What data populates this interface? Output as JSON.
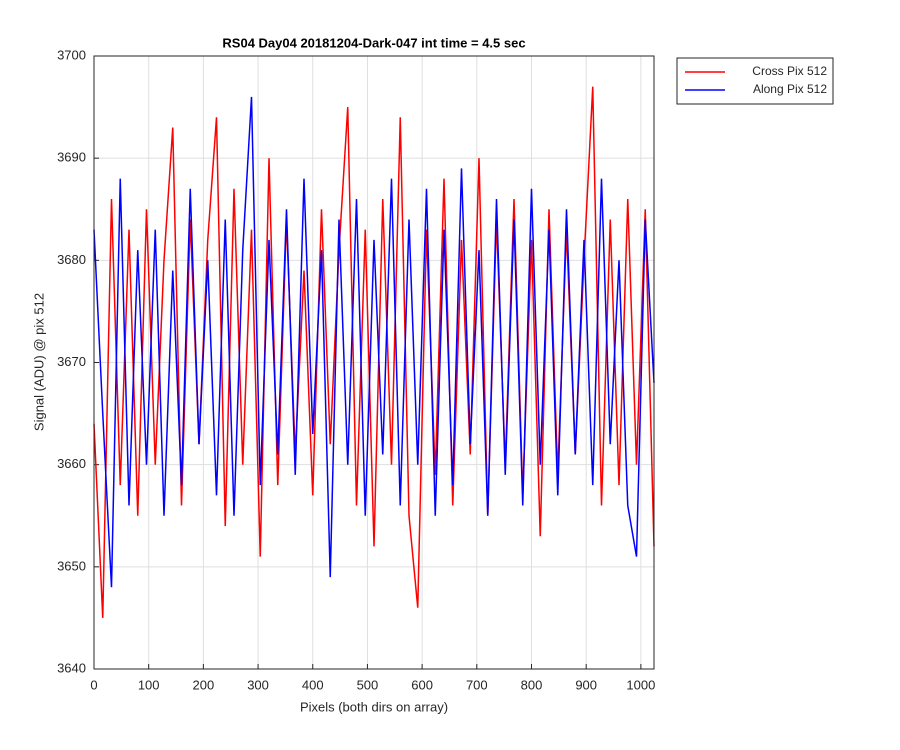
{
  "chart_data": {
    "type": "line",
    "title": "RS04 Day04 20181204-Dark-047 int time = 4.5 sec",
    "xlabel": "Pixels (both dirs on array)",
    "ylabel": "Signal (ADU) @ pix 512",
    "x": [
      0,
      16,
      32,
      48,
      64,
      80,
      96,
      112,
      128,
      144,
      160,
      176,
      192,
      208,
      224,
      240,
      256,
      272,
      288,
      304,
      320,
      336,
      352,
      368,
      384,
      400,
      416,
      432,
      448,
      464,
      480,
      496,
      512,
      528,
      544,
      560,
      576,
      592,
      608,
      624,
      640,
      656,
      672,
      688,
      704,
      720,
      736,
      752,
      768,
      784,
      800,
      816,
      832,
      848,
      864,
      880,
      896,
      912,
      928,
      944,
      960,
      976,
      992,
      1008,
      1024
    ],
    "series": [
      {
        "name": "Cross Pix 512",
        "color": "#ff0000",
        "values": [
          3664,
          3645,
          3686,
          3658,
          3683,
          3655,
          3685,
          3660,
          3680,
          3693,
          3656,
          3684,
          3662,
          3682,
          3694,
          3654,
          3687,
          3660,
          3683,
          3651,
          3690,
          3658,
          3684,
          3661,
          3679,
          3657,
          3685,
          3662,
          3681,
          3695,
          3656,
          3683,
          3652,
          3686,
          3660,
          3694,
          3655,
          3646,
          3683,
          3659,
          3688,
          3656,
          3682,
          3661,
          3690,
          3655,
          3684,
          3660,
          3686,
          3657,
          3682,
          3653,
          3685,
          3659,
          3683,
          3661,
          3680,
          3697,
          3656,
          3684,
          3658,
          3686,
          3660,
          3685,
          3652
        ]
      },
      {
        "name": "Along Pix 512",
        "color": "#0000ff",
        "values": [
          3683,
          3665,
          3648,
          3688,
          3656,
          3681,
          3660,
          3683,
          3655,
          3679,
          3658,
          3687,
          3662,
          3680,
          3657,
          3684,
          3655,
          3681,
          3696,
          3658,
          3682,
          3661,
          3685,
          3659,
          3688,
          3663,
          3681,
          3649,
          3684,
          3660,
          3686,
          3655,
          3682,
          3661,
          3688,
          3656,
          3684,
          3660,
          3687,
          3655,
          3683,
          3658,
          3689,
          3662,
          3681,
          3655,
          3686,
          3659,
          3684,
          3656,
          3687,
          3660,
          3683,
          3657,
          3685,
          3661,
          3682,
          3658,
          3688,
          3662,
          3680,
          3656,
          3651,
          3684,
          3668
        ]
      }
    ],
    "xlim": [
      0,
      1024
    ],
    "ylim": [
      3640,
      3700
    ],
    "xticks": [
      0,
      100,
      200,
      300,
      400,
      500,
      600,
      700,
      800,
      900,
      1000
    ],
    "yticks": [
      3640,
      3650,
      3660,
      3670,
      3680,
      3690,
      3700
    ],
    "grid": true,
    "legend": "outside-top-right"
  }
}
